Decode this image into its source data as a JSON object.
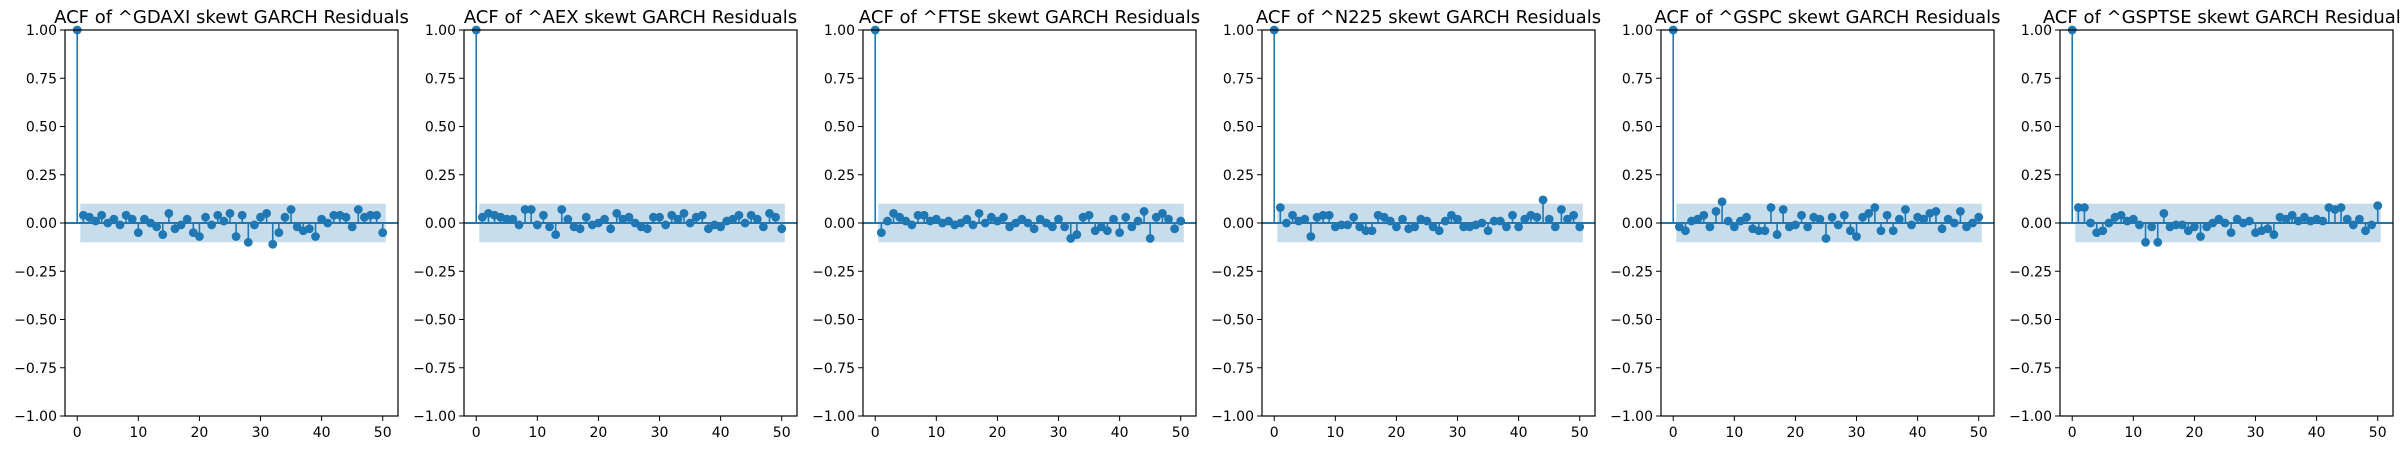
{
  "chart_data": [
    {
      "type": "scatter",
      "subtype": "acf-stem",
      "title": "ACF of ^GDAXI skewt GARCH Residuals",
      "xlabel": "",
      "ylabel": "",
      "xlim": [
        -2,
        52.5
      ],
      "ylim": [
        -1.0,
        1.0
      ],
      "xticks": [
        "0",
        "10",
        "20",
        "30",
        "40",
        "50"
      ],
      "yticks": [
        "1.00",
        "0.75",
        "0.50",
        "0.25",
        "0.00",
        "−0.25",
        "−0.50",
        "−0.75",
        "−1.00"
      ],
      "confidence_band": 0.1,
      "lags": [
        0,
        1,
        2,
        3,
        4,
        5,
        6,
        7,
        8,
        9,
        10,
        11,
        12,
        13,
        14,
        15,
        16,
        17,
        18,
        19,
        20,
        21,
        22,
        23,
        24,
        25,
        26,
        27,
        28,
        29,
        30,
        31,
        32,
        33,
        34,
        35,
        36,
        37,
        38,
        39,
        40,
        41,
        42,
        43,
        44,
        45,
        46,
        47,
        48,
        49,
        50
      ],
      "values": [
        1.0,
        0.04,
        0.03,
        0.01,
        0.04,
        0.0,
        0.02,
        -0.01,
        0.04,
        0.02,
        -0.05,
        0.02,
        0.0,
        -0.02,
        -0.06,
        0.05,
        -0.03,
        -0.01,
        0.02,
        -0.05,
        -0.07,
        0.03,
        -0.01,
        0.04,
        0.01,
        0.05,
        -0.07,
        0.04,
        -0.1,
        -0.01,
        0.03,
        0.05,
        -0.11,
        -0.05,
        0.03,
        0.07,
        -0.02,
        -0.04,
        -0.03,
        -0.07,
        0.02,
        0.0,
        0.04,
        0.04,
        0.03,
        -0.02,
        0.07,
        0.03,
        0.04,
        0.04,
        -0.05
      ]
    },
    {
      "type": "scatter",
      "subtype": "acf-stem",
      "title": "ACF of ^AEX skewt GARCH Residuals",
      "xlabel": "",
      "ylabel": "",
      "xlim": [
        -2,
        52.5
      ],
      "ylim": [
        -1.0,
        1.0
      ],
      "xticks": [
        "0",
        "10",
        "20",
        "30",
        "40",
        "50"
      ],
      "yticks": [
        "1.00",
        "0.75",
        "0.50",
        "0.25",
        "0.00",
        "−0.25",
        "−0.50",
        "−0.75",
        "−1.00"
      ],
      "confidence_band": 0.1,
      "lags": [
        0,
        1,
        2,
        3,
        4,
        5,
        6,
        7,
        8,
        9,
        10,
        11,
        12,
        13,
        14,
        15,
        16,
        17,
        18,
        19,
        20,
        21,
        22,
        23,
        24,
        25,
        26,
        27,
        28,
        29,
        30,
        31,
        32,
        33,
        34,
        35,
        36,
        37,
        38,
        39,
        40,
        41,
        42,
        43,
        44,
        45,
        46,
        47,
        48,
        49,
        50
      ],
      "values": [
        1.0,
        0.03,
        0.05,
        0.04,
        0.03,
        0.02,
        0.02,
        -0.01,
        0.07,
        0.07,
        -0.01,
        0.04,
        -0.02,
        -0.06,
        0.07,
        0.02,
        -0.02,
        -0.03,
        0.03,
        -0.01,
        0.0,
        0.02,
        -0.03,
        0.05,
        0.02,
        0.03,
        0.0,
        -0.02,
        -0.03,
        0.03,
        0.03,
        -0.01,
        0.04,
        0.02,
        0.05,
        0.0,
        0.03,
        0.04,
        -0.03,
        -0.01,
        -0.02,
        0.01,
        0.02,
        0.04,
        0.0,
        0.04,
        0.02,
        -0.02,
        0.05,
        0.03,
        -0.03
      ]
    },
    {
      "type": "scatter",
      "subtype": "acf-stem",
      "title": "ACF of ^FTSE skewt GARCH Residuals",
      "xlabel": "",
      "ylabel": "",
      "xlim": [
        -2,
        52.5
      ],
      "ylim": [
        -1.0,
        1.0
      ],
      "xticks": [
        "0",
        "10",
        "20",
        "30",
        "40",
        "50"
      ],
      "yticks": [
        "1.00",
        "0.75",
        "0.50",
        "0.25",
        "0.00",
        "−0.25",
        "−0.50",
        "−0.75",
        "−1.00"
      ],
      "confidence_band": 0.1,
      "lags": [
        0,
        1,
        2,
        3,
        4,
        5,
        6,
        7,
        8,
        9,
        10,
        11,
        12,
        13,
        14,
        15,
        16,
        17,
        18,
        19,
        20,
        21,
        22,
        23,
        24,
        25,
        26,
        27,
        28,
        29,
        30,
        31,
        32,
        33,
        34,
        35,
        36,
        37,
        38,
        39,
        40,
        41,
        42,
        43,
        44,
        45,
        46,
        47,
        48,
        49,
        50
      ],
      "values": [
        1.0,
        -0.05,
        0.01,
        0.05,
        0.03,
        0.01,
        -0.01,
        0.04,
        0.04,
        0.01,
        0.02,
        0.0,
        0.01,
        -0.01,
        0.0,
        0.02,
        -0.01,
        0.05,
        0.0,
        0.03,
        0.01,
        0.03,
        -0.02,
        0.0,
        0.02,
        0.0,
        -0.03,
        0.02,
        0.0,
        -0.02,
        0.02,
        -0.02,
        -0.08,
        -0.06,
        0.03,
        0.04,
        -0.04,
        -0.02,
        -0.04,
        0.02,
        -0.05,
        0.03,
        -0.02,
        0.01,
        0.06,
        -0.08,
        0.03,
        0.05,
        0.02,
        -0.03,
        0.01
      ]
    },
    {
      "type": "scatter",
      "subtype": "acf-stem",
      "title": "ACF of ^N225 skewt GARCH Residuals",
      "xlabel": "",
      "ylabel": "",
      "xlim": [
        -2,
        52.5
      ],
      "ylim": [
        -1.0,
        1.0
      ],
      "xticks": [
        "0",
        "10",
        "20",
        "30",
        "40",
        "50"
      ],
      "yticks": [
        "1.00",
        "0.75",
        "0.50",
        "0.25",
        "0.00",
        "−0.25",
        "−0.50",
        "−0.75",
        "−1.00"
      ],
      "confidence_band": 0.1,
      "lags": [
        0,
        1,
        2,
        3,
        4,
        5,
        6,
        7,
        8,
        9,
        10,
        11,
        12,
        13,
        14,
        15,
        16,
        17,
        18,
        19,
        20,
        21,
        22,
        23,
        24,
        25,
        26,
        27,
        28,
        29,
        30,
        31,
        32,
        33,
        34,
        35,
        36,
        37,
        38,
        39,
        40,
        41,
        42,
        43,
        44,
        45,
        46,
        47,
        48,
        49,
        50
      ],
      "values": [
        1.0,
        0.08,
        0.0,
        0.04,
        0.01,
        0.02,
        -0.07,
        0.03,
        0.04,
        0.04,
        -0.02,
        -0.01,
        -0.01,
        0.03,
        -0.02,
        -0.04,
        -0.04,
        0.04,
        0.03,
        0.01,
        -0.02,
        0.02,
        -0.03,
        -0.02,
        0.02,
        0.01,
        -0.02,
        -0.04,
        0.01,
        0.04,
        0.02,
        -0.02,
        -0.02,
        -0.01,
        0.0,
        -0.04,
        0.01,
        0.01,
        -0.02,
        0.04,
        -0.02,
        0.02,
        0.04,
        0.03,
        0.12,
        0.02,
        -0.02,
        0.07,
        0.02,
        0.04,
        -0.02
      ]
    },
    {
      "type": "scatter",
      "subtype": "acf-stem",
      "title": "ACF of ^GSPC skewt GARCH Residuals",
      "xlabel": "",
      "ylabel": "",
      "xlim": [
        -2,
        52.5
      ],
      "ylim": [
        -1.0,
        1.0
      ],
      "xticks": [
        "0",
        "10",
        "20",
        "30",
        "40",
        "50"
      ],
      "yticks": [
        "1.00",
        "0.75",
        "0.50",
        "0.25",
        "0.00",
        "−0.25",
        "−0.50",
        "−0.75",
        "−1.00"
      ],
      "confidence_band": 0.1,
      "lags": [
        0,
        1,
        2,
        3,
        4,
        5,
        6,
        7,
        8,
        9,
        10,
        11,
        12,
        13,
        14,
        15,
        16,
        17,
        18,
        19,
        20,
        21,
        22,
        23,
        24,
        25,
        26,
        27,
        28,
        29,
        30,
        31,
        32,
        33,
        34,
        35,
        36,
        37,
        38,
        39,
        40,
        41,
        42,
        43,
        44,
        45,
        46,
        47,
        48,
        49,
        50
      ],
      "values": [
        1.0,
        -0.02,
        -0.04,
        0.01,
        0.02,
        0.04,
        -0.02,
        0.06,
        0.11,
        0.01,
        -0.02,
        0.01,
        0.03,
        -0.03,
        -0.04,
        -0.04,
        0.08,
        -0.06,
        0.07,
        -0.02,
        -0.01,
        0.04,
        -0.02,
        0.03,
        0.02,
        -0.08,
        0.03,
        -0.01,
        0.04,
        -0.04,
        -0.07,
        0.03,
        0.05,
        0.08,
        -0.04,
        0.04,
        -0.04,
        0.02,
        0.07,
        -0.01,
        0.03,
        0.02,
        0.05,
        0.06,
        -0.03,
        0.02,
        0.0,
        0.06,
        -0.02,
        0.0,
        0.03
      ]
    },
    {
      "type": "scatter",
      "subtype": "acf-stem",
      "title": "ACF of ^GSPTSE skewt GARCH Residuals",
      "xlabel": "",
      "ylabel": "",
      "xlim": [
        -2,
        52.5
      ],
      "ylim": [
        -1.0,
        1.0
      ],
      "xticks": [
        "0",
        "10",
        "20",
        "30",
        "40",
        "50"
      ],
      "yticks": [
        "1.00",
        "0.75",
        "0.50",
        "0.25",
        "0.00",
        "−0.25",
        "−0.50",
        "−0.75",
        "−1.00"
      ],
      "confidence_band": 0.1,
      "lags": [
        0,
        1,
        2,
        3,
        4,
        5,
        6,
        7,
        8,
        9,
        10,
        11,
        12,
        13,
        14,
        15,
        16,
        17,
        18,
        19,
        20,
        21,
        22,
        23,
        24,
        25,
        26,
        27,
        28,
        29,
        30,
        31,
        32,
        33,
        34,
        35,
        36,
        37,
        38,
        39,
        40,
        41,
        42,
        43,
        44,
        45,
        46,
        47,
        48,
        49,
        50
      ],
      "values": [
        1.0,
        0.08,
        0.08,
        0.0,
        -0.05,
        -0.04,
        0.0,
        0.03,
        0.04,
        0.01,
        0.02,
        -0.01,
        -0.1,
        -0.02,
        -0.1,
        0.05,
        -0.02,
        -0.01,
        -0.01,
        -0.04,
        -0.02,
        -0.07,
        -0.02,
        0.0,
        0.02,
        0.0,
        -0.05,
        0.02,
        0.0,
        0.01,
        -0.05,
        -0.04,
        -0.03,
        -0.06,
        0.03,
        0.02,
        0.04,
        0.01,
        0.03,
        0.01,
        0.02,
        0.01,
        0.08,
        0.07,
        0.08,
        0.02,
        -0.01,
        0.02,
        -0.04,
        -0.01,
        0.09
      ]
    }
  ]
}
